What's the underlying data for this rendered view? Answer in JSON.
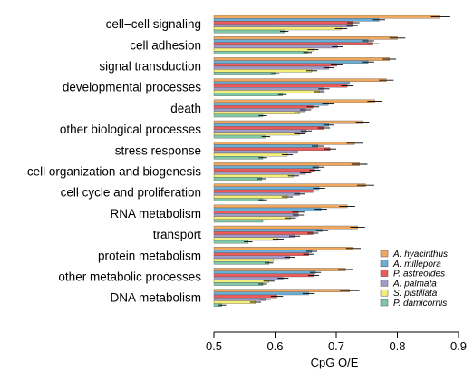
{
  "chart_data": {
    "type": "bar",
    "orientation": "horizontal",
    "xlabel": "CpG O/E",
    "ylabel": "",
    "xlim": [
      0.5,
      0.9
    ],
    "xticks": [
      "0.5",
      "0.6",
      "0.7",
      "0.8",
      "0.9"
    ],
    "grid": false,
    "legend_position": "bottom-right",
    "categories": [
      "cell−cell signaling",
      "cell adhesion",
      "signal transduction",
      "developmental processes",
      "death",
      "other biological processes",
      "stress response",
      "cell organization and biogenesis",
      "cell cycle and proliferation",
      "RNA metabolism",
      "transport",
      "protein metabolism",
      "other metabolic processes",
      "DNA metabolism"
    ],
    "series": [
      {
        "name": "A. hyacinthus",
        "color": "#F0A860",
        "values": [
          0.87,
          0.8,
          0.787,
          0.782,
          0.763,
          0.743,
          0.73,
          0.738,
          0.748,
          0.718,
          0.735,
          0.728,
          0.715,
          0.722
        ],
        "errors": [
          0.015,
          0.013,
          0.011,
          0.012,
          0.012,
          0.011,
          0.013,
          0.013,
          0.014,
          0.013,
          0.012,
          0.012,
          0.012,
          0.016
        ]
      },
      {
        "name": "A. millepora",
        "color": "#6BAED6",
        "values": [
          0.77,
          0.752,
          0.752,
          0.722,
          0.687,
          0.688,
          0.67,
          0.671,
          0.672,
          0.675,
          0.677,
          0.66,
          0.666,
          0.655
        ],
        "errors": [
          0.01,
          0.01,
          0.01,
          0.009,
          0.01,
          0.009,
          0.01,
          0.01,
          0.01,
          0.01,
          0.01,
          0.009,
          0.009,
          0.01
        ]
      },
      {
        "name": "P. astreoides",
        "color": "#EF5B5B",
        "values": [
          0.728,
          0.76,
          0.701,
          0.718,
          0.662,
          0.68,
          0.69,
          0.665,
          0.662,
          0.638,
          0.662,
          0.655,
          0.663,
          0.603
        ],
        "errors": [
          0.01,
          0.01,
          0.01,
          0.01,
          0.01,
          0.01,
          0.01,
          0.009,
          0.01,
          0.01,
          0.009,
          0.009,
          0.009,
          0.01
        ]
      },
      {
        "name": "A. palmata",
        "color": "#A09BC7",
        "values": [
          0.726,
          0.702,
          0.688,
          0.68,
          0.65,
          0.651,
          0.637,
          0.65,
          0.64,
          0.638,
          0.632,
          0.624,
          0.613,
          0.584
        ],
        "errors": [
          0.009,
          0.009,
          0.009,
          0.009,
          0.009,
          0.009,
          0.009,
          0.009,
          0.009,
          0.009,
          0.009,
          0.009,
          0.009,
          0.009
        ]
      },
      {
        "name": "S. pistillata",
        "color": "#F5EE7A",
        "values": [
          0.708,
          0.662,
          0.66,
          0.672,
          0.64,
          0.64,
          0.62,
          0.63,
          0.62,
          0.625,
          0.605,
          0.597,
          0.59,
          0.568
        ],
        "errors": [
          0.01,
          0.009,
          0.009,
          0.009,
          0.009,
          0.009,
          0.009,
          0.009,
          0.009,
          0.009,
          0.009,
          0.009,
          0.009,
          0.009
        ]
      },
      {
        "name": "P. damicornis",
        "color": "#7FC9A7",
        "values": [
          0.615,
          0.653,
          0.6,
          0.612,
          0.58,
          0.585,
          0.58,
          0.578,
          0.58,
          0.58,
          0.556,
          0.59,
          0.58,
          0.513
        ],
        "errors": [
          0.007,
          0.007,
          0.007,
          0.007,
          0.007,
          0.007,
          0.007,
          0.007,
          0.007,
          0.007,
          0.007,
          0.007,
          0.007,
          0.007
        ]
      }
    ]
  }
}
